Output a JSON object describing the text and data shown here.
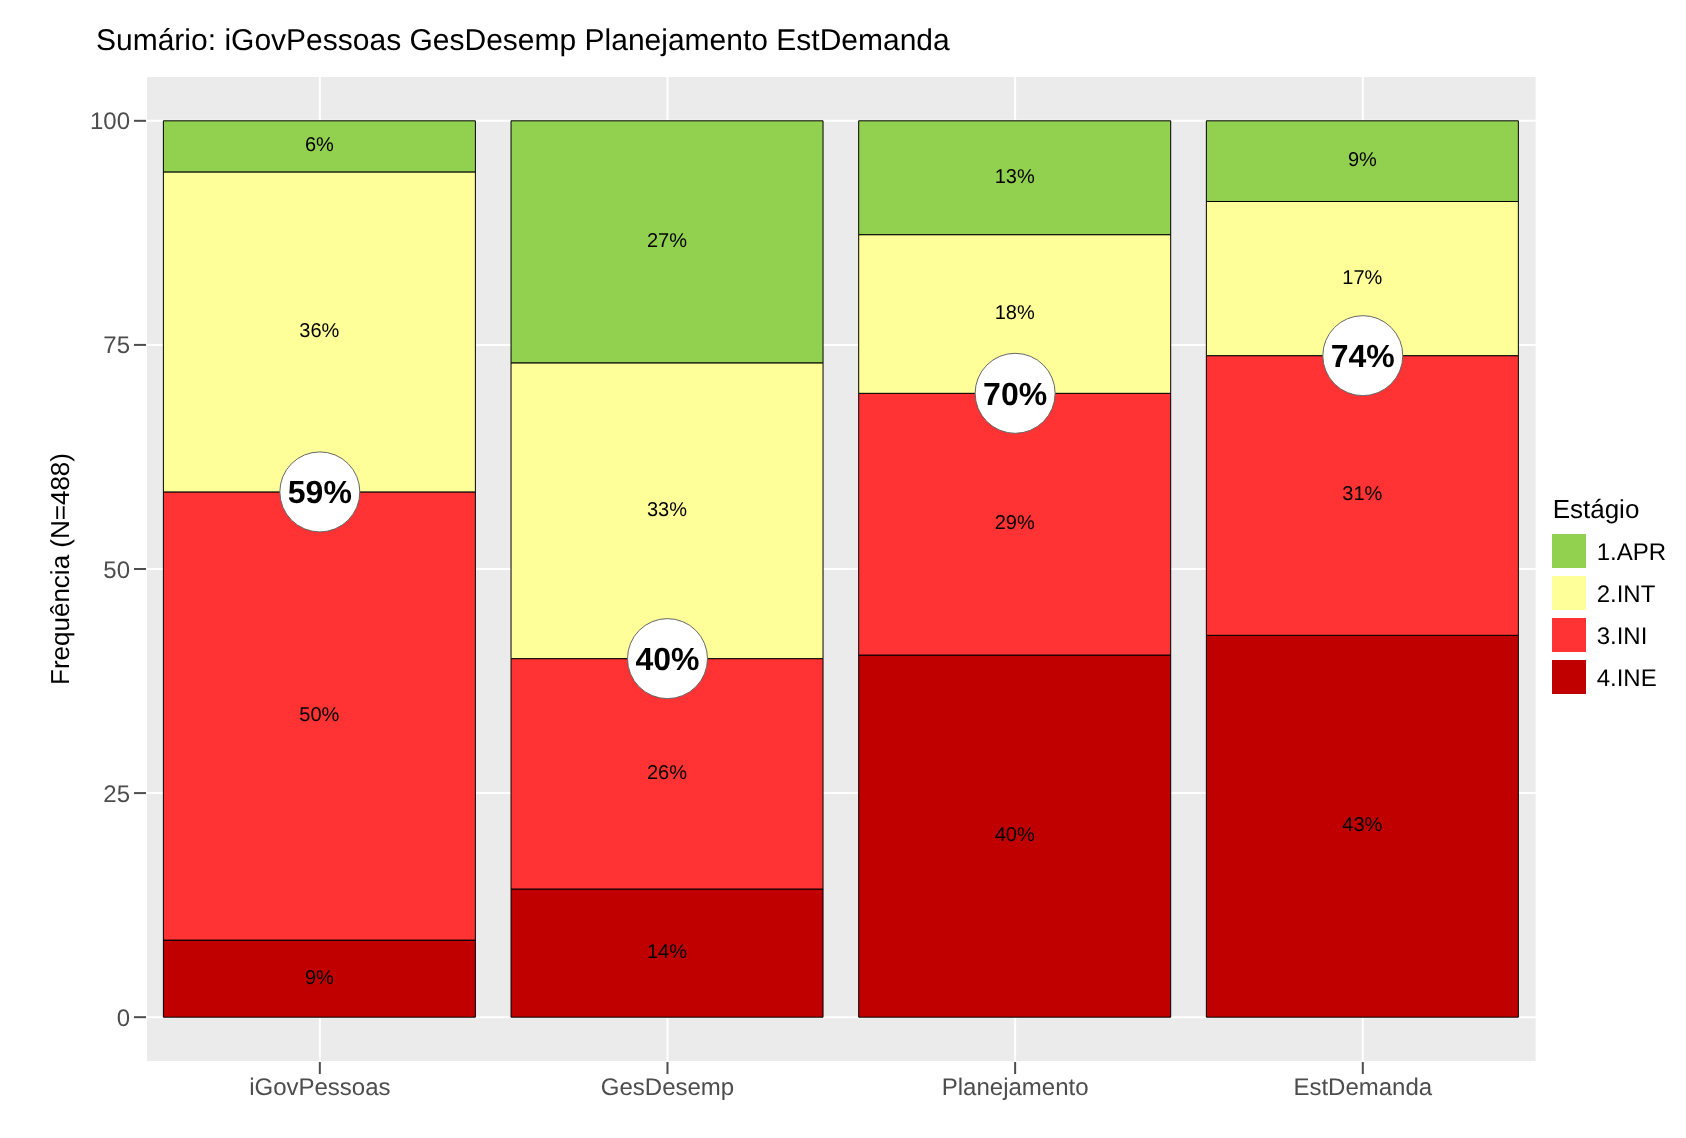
{
  "chart_data": {
    "type": "bar",
    "title": "Sumário: iGovPessoas GesDesemp Planejamento EstDemanda",
    "ylabel": "Frequência (N=488)",
    "legend_title": "Estágio",
    "categories": [
      "iGovPessoas",
      "GesDesemp",
      "Planejamento",
      "EstDemanda"
    ],
    "stacked": true,
    "series": [
      {
        "name": "4.INE",
        "color": "#c00000",
        "values": [
          8.6,
          14.3,
          40.4,
          42.6
        ],
        "value_labels": [
          "9%",
          "14%",
          "40%",
          "43%"
        ]
      },
      {
        "name": "3.INI",
        "color": "#ff3333",
        "values": [
          50.0,
          25.7,
          29.2,
          31.2
        ],
        "value_labels": [
          "50%",
          "26%",
          "29%",
          "31%"
        ]
      },
      {
        "name": "2.INT",
        "color": "#ffff99",
        "values": [
          35.7,
          33.0,
          17.7,
          17.2
        ],
        "value_labels": [
          "36%",
          "33%",
          "18%",
          "17%"
        ]
      },
      {
        "name": "1.APR",
        "color": "#92d050",
        "values": [
          5.7,
          27.0,
          12.7,
          9.0
        ],
        "value_labels": [
          "6%",
          "27%",
          "13%",
          "9%"
        ]
      }
    ],
    "annotations": [
      {
        "text": "59%",
        "x": "iGovPessoas",
        "y": 58.6
      },
      {
        "text": "40%",
        "x": "GesDesemp",
        "y": 40.0
      },
      {
        "text": "70%",
        "x": "Planejamento",
        "y": 69.6
      },
      {
        "text": "74%",
        "x": "EstDemanda",
        "y": 73.8
      }
    ],
    "ylim": [
      -5,
      105
    ],
    "yticks": [
      0,
      25,
      50,
      75,
      100
    ],
    "grid": true,
    "legend": "right"
  }
}
